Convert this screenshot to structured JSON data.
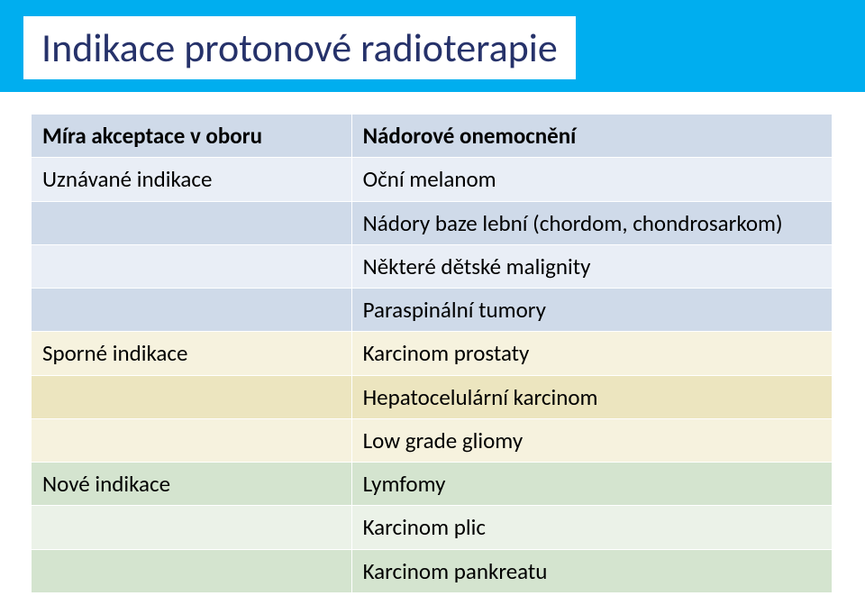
{
  "title": "Indikace protonové radioterapie",
  "title_color": "#26326a",
  "title_bar_bg": "#00aeef",
  "title_box_bg": "#ffffff",
  "table": {
    "colors": {
      "blue_dark": "#cfdae9",
      "blue_light": "#e9eef6",
      "yellow_dark": "#ece5bf",
      "yellow_light": "#f6f2de",
      "green_dark": "#d4e4cf",
      "green_light": "#ebf2e8",
      "border": "#ffffff",
      "text": "#000000"
    },
    "font_size": 25,
    "rows": [
      {
        "left": "Míra akceptace v oboru",
        "right": "Nádorové onemocnění",
        "left_bg": "blue_dark",
        "right_bg": "blue_dark",
        "bold": true
      },
      {
        "left": "Uznávané indikace",
        "right": "Oční melanom",
        "left_bg": "blue_light",
        "right_bg": "blue_light",
        "bold": false
      },
      {
        "left": "",
        "right": "Nádory baze lební (chordom, chondrosarkom)",
        "left_bg": "blue_dark",
        "right_bg": "blue_dark",
        "bold": false
      },
      {
        "left": "",
        "right": "Některé dětské malignity",
        "left_bg": "blue_light",
        "right_bg": "blue_light",
        "bold": false
      },
      {
        "left": "",
        "right": "Paraspinální tumory",
        "left_bg": "blue_dark",
        "right_bg": "blue_dark",
        "bold": false
      },
      {
        "left": "Sporné indikace",
        "right": "Karcinom prostaty",
        "left_bg": "yel_light",
        "right_bg": "yel_light",
        "bold": false
      },
      {
        "left": "",
        "right": "Hepatocelulární karcinom",
        "left_bg": "yel_dark",
        "right_bg": "yel_dark",
        "bold": false
      },
      {
        "left": "",
        "right": "Low grade gliomy",
        "left_bg": "yel_light",
        "right_bg": "yel_light",
        "bold": false
      },
      {
        "left": "Nové indikace",
        "right": "Lymfomy",
        "left_bg": "grn_dark",
        "right_bg": "grn_dark",
        "bold": false
      },
      {
        "left": "",
        "right": "Karcinom plic",
        "left_bg": "grn_light",
        "right_bg": "grn_light",
        "bold": false
      },
      {
        "left": "",
        "right": "Karcinom pankreatu",
        "left_bg": "grn_dark",
        "right_bg": "grn_dark",
        "bold": false
      }
    ]
  }
}
